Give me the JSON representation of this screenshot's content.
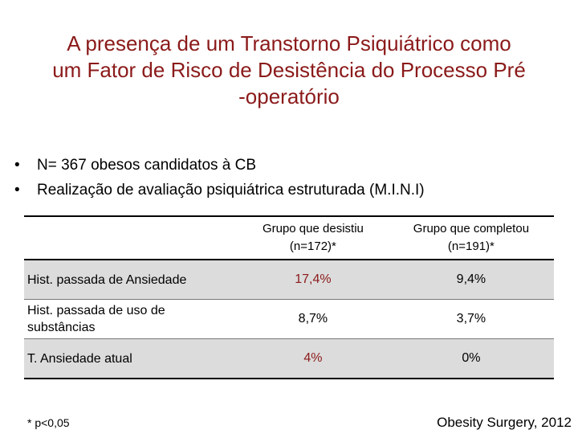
{
  "title": {
    "line1": "A presença de um Transtorno Psiquiátrico como",
    "line2": "um Fator de Risco de Desistência do Processo Pré",
    "line3": "-operatório"
  },
  "bullets": [
    "N= 367 obesos candidatos à CB",
    "Realização de avaliação psiquiátrica estruturada (M.I.N.I)"
  ],
  "table": {
    "headers": [
      "",
      "Grupo que desistiu (n=172)*",
      "Grupo que completou (n=191)*"
    ],
    "rows": [
      {
        "label": "Hist. passada de Ansiedade",
        "desistiu": "17,4%",
        "completou": "9,4%",
        "significant": true
      },
      {
        "label": "Hist. passada de uso de substâncias",
        "desistiu": "8,7%",
        "completou": "3,7%",
        "significant": false
      },
      {
        "label": "T. Ansiedade atual",
        "desistiu": "4%",
        "completou": "0%",
        "significant": true
      }
    ]
  },
  "footnote": "* p<0,05",
  "source": "Obesity Surgery, 2012",
  "colors": {
    "title": "#8b1a1a",
    "significant": "#8b1a1a",
    "row_shade": "#dcdcdc"
  }
}
